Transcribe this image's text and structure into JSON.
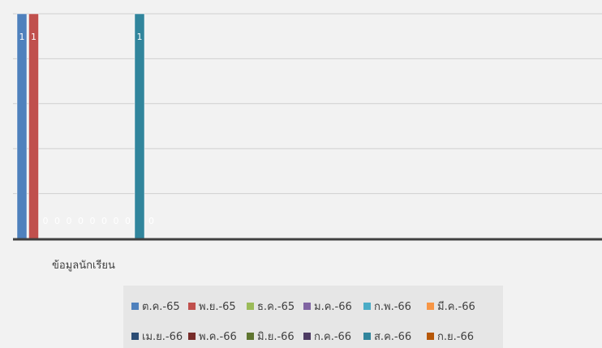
{
  "chart_data": {
    "type": "bar",
    "categories": [
      "ข้อมูลนักเรียน"
    ],
    "ylim": [
      0,
      1
    ],
    "grid": true,
    "legend_position": "bottom",
    "series": [
      {
        "name": "ต.ค.-65",
        "values": [
          1
        ],
        "color": "#4f81bd",
        "label": "1"
      },
      {
        "name": "พ.ย.-65",
        "values": [
          1
        ],
        "color": "#c0504d",
        "label": "1"
      },
      {
        "name": "ธ.ค.-65",
        "values": [
          0
        ],
        "color": "#9bbb59",
        "label": "0"
      },
      {
        "name": "ม.ค.-66",
        "values": [
          0
        ],
        "color": "#8064a2",
        "label": "0"
      },
      {
        "name": "ก.พ.-66",
        "values": [
          0
        ],
        "color": "#4bacc6",
        "label": "0"
      },
      {
        "name": "มี.ค.-66",
        "values": [
          0
        ],
        "color": "#f79646",
        "label": "0"
      },
      {
        "name": "เม.ย.-66",
        "values": [
          0
        ],
        "color": "#2c4d75",
        "label": "0"
      },
      {
        "name": "พ.ค.-66",
        "values": [
          0
        ],
        "color": "#772c2a",
        "label": "0"
      },
      {
        "name": "มิ.ย.-66",
        "values": [
          0
        ],
        "color": "#5f7530",
        "label": "0"
      },
      {
        "name": "ก.ค.-66",
        "values": [
          0
        ],
        "color": "#4d3b62",
        "label": "0"
      },
      {
        "name": "ส.ค.-66",
        "values": [
          1
        ],
        "color": "#31859c",
        "label": "1"
      },
      {
        "name": "ก.ย.-66",
        "values": [
          0
        ],
        "color": "#b65708",
        "label": "0"
      }
    ]
  }
}
